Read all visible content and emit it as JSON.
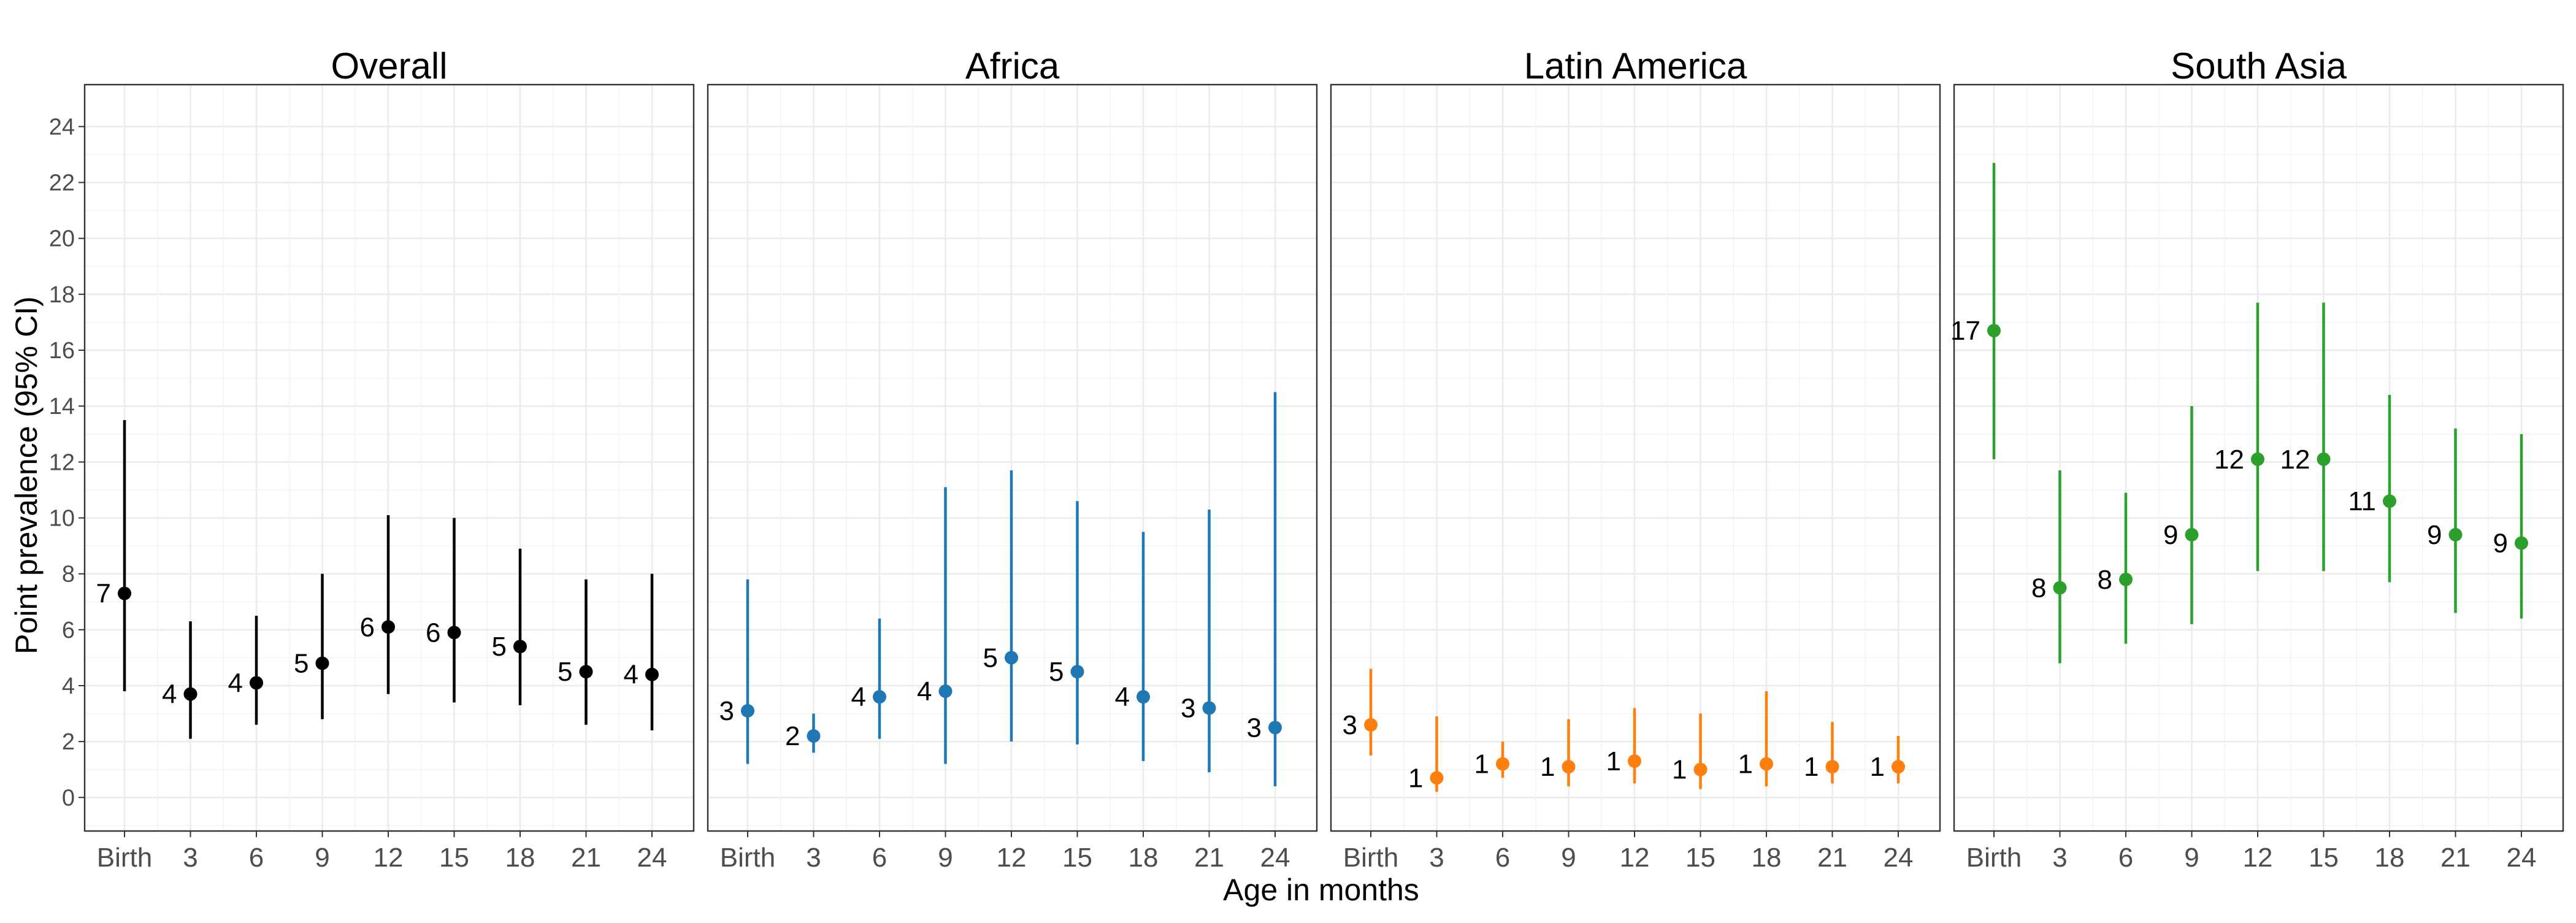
{
  "chart_data": {
    "type": "scatter",
    "xlabel": "Age in months",
    "ylabel": "Point prevalence (95% CI)",
    "categories": [
      "Birth",
      "3",
      "6",
      "9",
      "12",
      "15",
      "18",
      "21",
      "24"
    ],
    "ylim": [
      -1.2,
      25.5
    ],
    "yticks": [
      0,
      2,
      4,
      6,
      8,
      10,
      12,
      14,
      16,
      18,
      20,
      22,
      24
    ],
    "grid": true,
    "legend": "none",
    "panels": [
      {
        "title": "Overall",
        "color": "#000000",
        "values": [
          7.3,
          3.7,
          4.1,
          4.8,
          6.1,
          5.9,
          5.4,
          4.5,
          4.4
        ],
        "lower": [
          3.8,
          2.1,
          2.6,
          2.8,
          3.7,
          3.4,
          3.3,
          2.6,
          2.4
        ],
        "upper": [
          13.5,
          6.3,
          6.5,
          8.0,
          10.1,
          10.0,
          8.9,
          7.8,
          8.0
        ],
        "labels": [
          "7",
          "4",
          "4",
          "5",
          "6",
          "6",
          "5",
          "5",
          "4"
        ]
      },
      {
        "title": "Africa",
        "color": "#1f77b4",
        "values": [
          3.1,
          2.2,
          3.6,
          3.8,
          5.0,
          4.5,
          3.6,
          3.2,
          2.5
        ],
        "lower": [
          1.2,
          1.6,
          2.1,
          1.2,
          2.0,
          1.9,
          1.3,
          0.9,
          0.4
        ],
        "upper": [
          7.8,
          3.0,
          6.4,
          11.1,
          11.7,
          10.6,
          9.5,
          10.3,
          14.5
        ],
        "labels": [
          "3",
          "2",
          "4",
          "4",
          "5",
          "5",
          "4",
          "3",
          "3"
        ]
      },
      {
        "title": "Latin America",
        "color": "#ff7f0e",
        "values": [
          2.6,
          0.7,
          1.2,
          1.1,
          1.3,
          1.0,
          1.2,
          1.1,
          1.1
        ],
        "lower": [
          1.5,
          0.2,
          0.7,
          0.4,
          0.5,
          0.3,
          0.4,
          0.5,
          0.5
        ],
        "upper": [
          4.6,
          2.9,
          2.0,
          2.8,
          3.2,
          3.0,
          3.8,
          2.7,
          2.2
        ],
        "labels": [
          "3",
          "1",
          "1",
          "1",
          "1",
          "1",
          "1",
          "1",
          "1"
        ]
      },
      {
        "title": "South Asia",
        "color": "#2ca02c",
        "values": [
          16.7,
          7.5,
          7.8,
          9.4,
          12.1,
          12.1,
          10.6,
          9.4,
          9.1
        ],
        "lower": [
          12.1,
          4.8,
          5.5,
          6.2,
          8.1,
          8.1,
          7.7,
          6.6,
          6.4
        ],
        "upper": [
          22.7,
          11.7,
          10.9,
          14.0,
          17.7,
          17.7,
          14.4,
          13.2,
          13.0
        ],
        "labels": [
          "17",
          "8",
          "8",
          "9",
          "12",
          "12",
          "11",
          "9",
          "9"
        ]
      }
    ]
  }
}
